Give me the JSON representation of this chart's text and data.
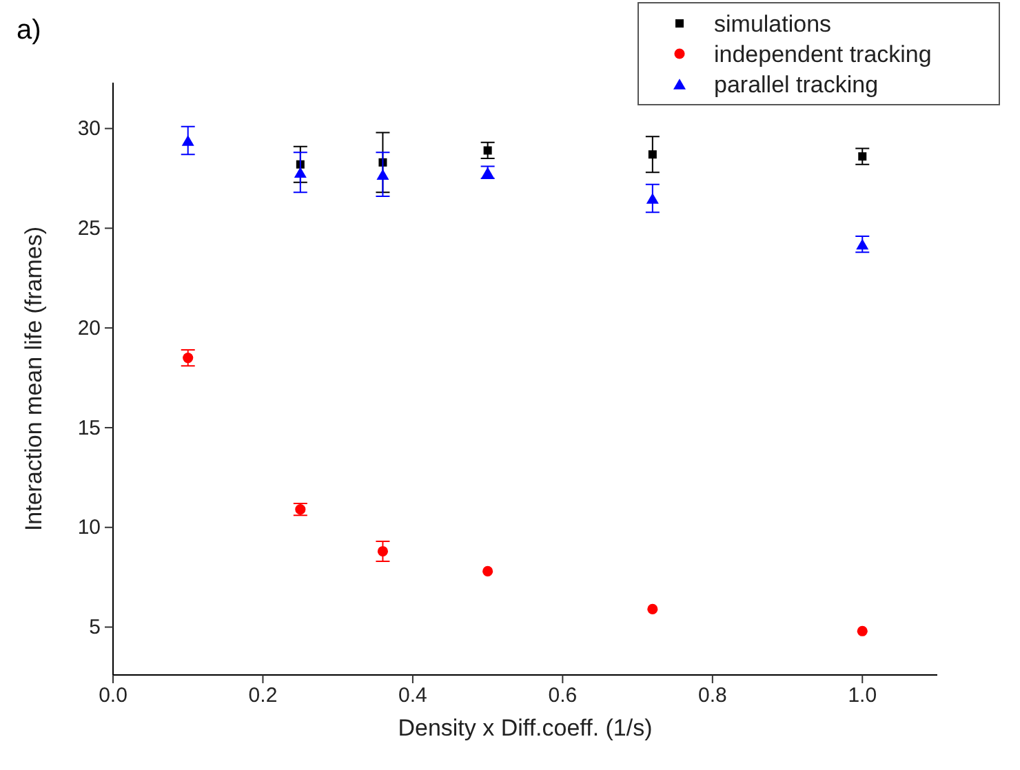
{
  "chart_data": {
    "type": "scatter",
    "xlabel": "Density x Diff.coeff. (1/s)",
    "ylabel": "Interaction mean life (frames)",
    "annotations": [
      "a)"
    ],
    "x": [
      0.1,
      0.25,
      0.36,
      0.5,
      0.72,
      1.0
    ],
    "series": [
      {
        "name": "simulations",
        "color": "#000000",
        "marker": "square",
        "values": [
          null,
          28.2,
          28.3,
          28.9,
          28.7,
          28.6
        ],
        "errors": [
          null,
          0.9,
          1.5,
          0.4,
          0.9,
          0.4
        ]
      },
      {
        "name": "independent tracking",
        "color": "#ff0000",
        "marker": "circle",
        "values": [
          18.5,
          10.9,
          8.8,
          7.8,
          5.9,
          4.8
        ],
        "errors": [
          0.4,
          0.3,
          0.5,
          null,
          null,
          null
        ]
      },
      {
        "name": "parallel tracking",
        "color": "#0000ff",
        "marker": "triangle",
        "values": [
          29.4,
          27.8,
          27.7,
          27.8,
          26.5,
          24.2
        ],
        "errors": [
          0.7,
          1.0,
          1.1,
          0.3,
          0.7,
          0.4
        ]
      }
    ],
    "xlim": [
      0.0,
      1.1
    ],
    "xticks": [
      {
        "value": 0,
        "label": "0.0"
      },
      0.2,
      0.4,
      0.6,
      0.8,
      {
        "value": 1,
        "label": "1.0"
      }
    ],
    "ylim": [
      2.6,
      32.3
    ],
    "yticks": [
      5,
      10,
      15,
      20,
      25,
      30
    ],
    "grid": false,
    "legend": "top right"
  }
}
